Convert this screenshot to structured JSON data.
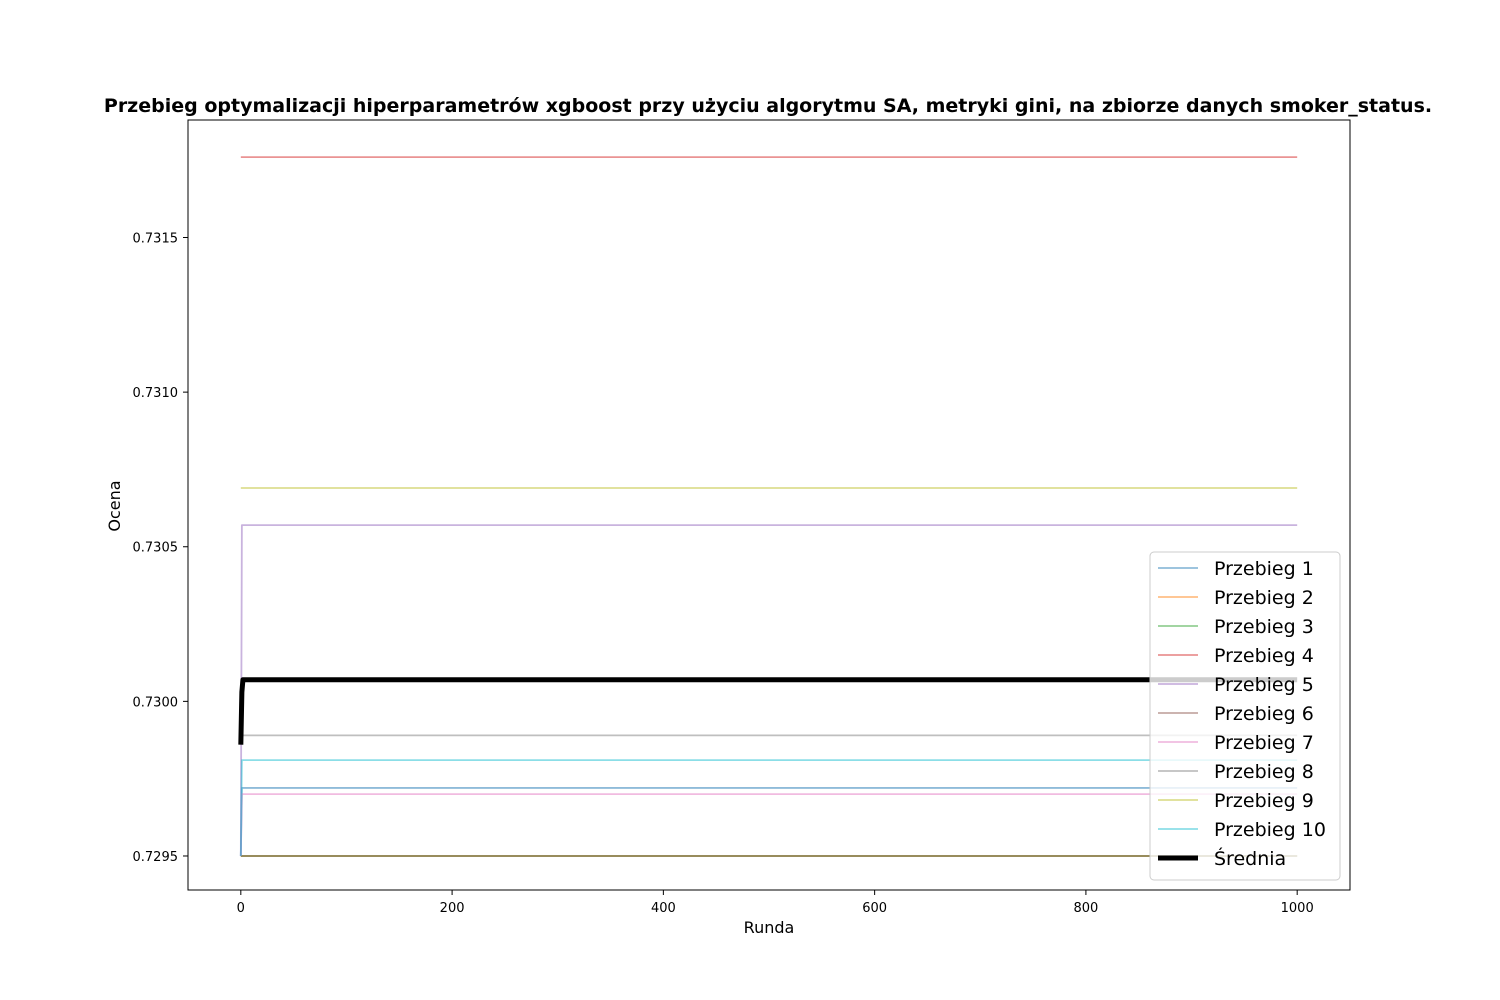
{
  "chart_data": {
    "type": "line",
    "title": "Przebieg optymalizacji hiperparametrów xgboost przy użyciu algorytmu SA, metryki gini, na zbiorze danych smoker_status.",
    "xlabel": "Runda",
    "ylabel": "Ocena",
    "xlim": [
      -50,
      1050
    ],
    "ylim": [
      0.72939,
      0.73188
    ],
    "xticks": [
      0,
      200,
      400,
      600,
      800,
      1000
    ],
    "xtick_labels": [
      "0",
      "200",
      "400",
      "600",
      "800",
      "1000"
    ],
    "yticks": [
      0.7295,
      0.73,
      0.7305,
      0.731,
      0.7315
    ],
    "ytick_labels": [
      "0.7295",
      "0.7300",
      "0.7305",
      "0.7310",
      "0.7315"
    ],
    "grid": false,
    "legend_position": "lower-right",
    "series": [
      {
        "name": "Przebieg 1",
        "color": "#1f77b4",
        "x": [
          0,
          1,
          1000
        ],
        "y": [
          0.7295,
          0.72972,
          0.72972
        ]
      },
      {
        "name": "Przebieg 2",
        "color": "#ff7f0e",
        "x": [
          0,
          1000
        ],
        "y": [
          0.7295,
          0.7295
        ]
      },
      {
        "name": "Przebieg 3",
        "color": "#2ca02c",
        "x": [
          0,
          1000
        ],
        "y": [
          0.7295,
          0.7295
        ]
      },
      {
        "name": "Przebieg 4",
        "color": "#d62728",
        "x": [
          0,
          1000
        ],
        "y": [
          0.73176,
          0.73176
        ]
      },
      {
        "name": "Przebieg 5",
        "color": "#9467bd",
        "x": [
          0,
          1,
          1000
        ],
        "y": [
          0.7295,
          0.73057,
          0.73057
        ]
      },
      {
        "name": "Przebieg 6",
        "color": "#8c564b",
        "x": [
          0,
          1000
        ],
        "y": [
          0.7295,
          0.7295
        ]
      },
      {
        "name": "Przebieg 7",
        "color": "#e377c2",
        "x": [
          0,
          1,
          1000
        ],
        "y": [
          0.7295,
          0.7297,
          0.7297
        ]
      },
      {
        "name": "Przebieg 8",
        "color": "#7f7f7f",
        "x": [
          0,
          1000
        ],
        "y": [
          0.72989,
          0.72989
        ]
      },
      {
        "name": "Przebieg 9",
        "color": "#bcbd22",
        "x": [
          0,
          1000
        ],
        "y": [
          0.73069,
          0.73069
        ]
      },
      {
        "name": "Przebieg 10",
        "color": "#17becf",
        "x": [
          0,
          1,
          1000
        ],
        "y": [
          0.7295,
          0.72981,
          0.72981
        ]
      },
      {
        "name": "Średnia",
        "color": "#000000",
        "bold": true,
        "x": [
          0,
          1,
          2,
          1000
        ],
        "y": [
          0.72986,
          0.73003,
          0.73007,
          0.73007
        ]
      }
    ]
  }
}
